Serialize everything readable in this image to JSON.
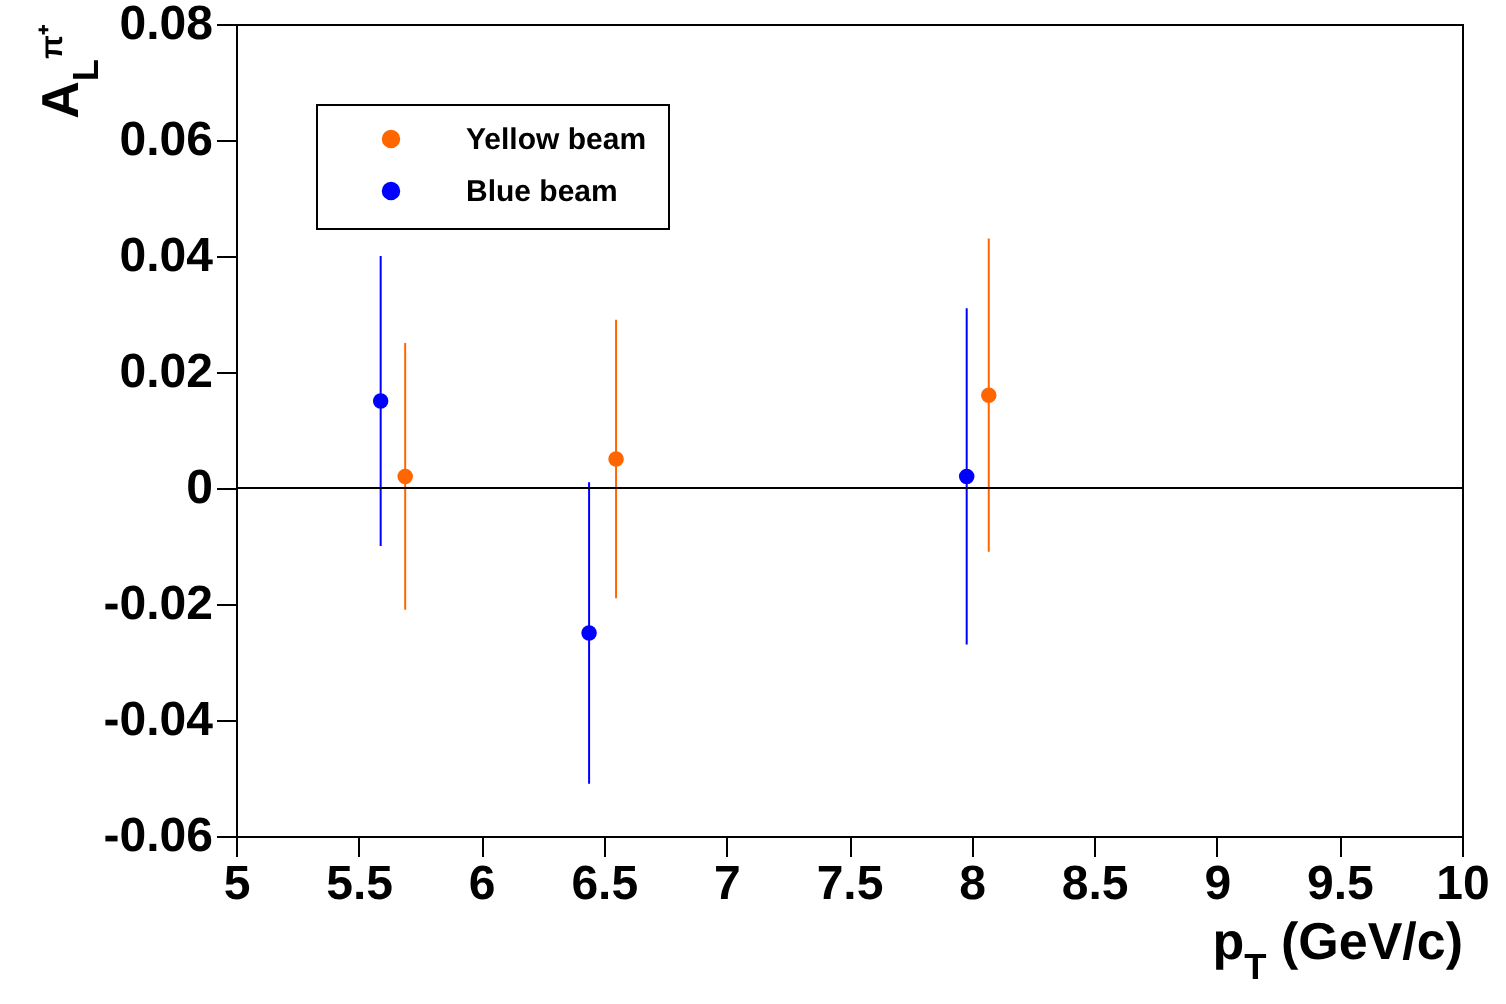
{
  "chart_data": {
    "type": "scatter",
    "xlabel": "p$_{T}$ (GeV/c)",
    "ylabel": "A$_{L}$$^{π⁺}$",
    "xlim": [
      5,
      10
    ],
    "xticks": [
      5,
      5.5,
      6,
      6.5,
      7,
      7.5,
      8,
      8.5,
      9,
      9.5,
      10
    ],
    "ylim": [
      -0.06,
      0.08
    ],
    "yticks": [
      {
        "value": -0.06,
        "label": "-0.06"
      },
      {
        "value": -0.04,
        "label": "-0.04"
      },
      {
        "value": -0.02,
        "label": "-0.02"
      },
      0,
      {
        "value": 0.02,
        "label": "0.02"
      },
      {
        "value": 0.04,
        "label": "0.04"
      },
      {
        "value": 0.06,
        "label": "0.06"
      },
      {
        "value": 0.08,
        "label": "0.08"
      }
    ],
    "series": [
      {
        "name": "Yellow beam",
        "color": "#ff6600",
        "x": [
          5.69,
          6.55,
          8.07
        ],
        "values": [
          0.002,
          0.005,
          0.016
        ],
        "errors": [
          0.023,
          0.024,
          0.027
        ]
      },
      {
        "name": "Blue beam",
        "color": "#0000ff",
        "x": [
          5.59,
          6.44,
          7.98
        ],
        "values": [
          0.015,
          -0.025,
          0.002
        ],
        "errors": [
          0.025,
          0.026,
          0.029
        ]
      }
    ],
    "ref_lines": [
      {
        "axis": "y",
        "value": 0,
        "color": "#000000"
      }
    ],
    "marker": "circle",
    "legend": "top left",
    "grid": false
  }
}
